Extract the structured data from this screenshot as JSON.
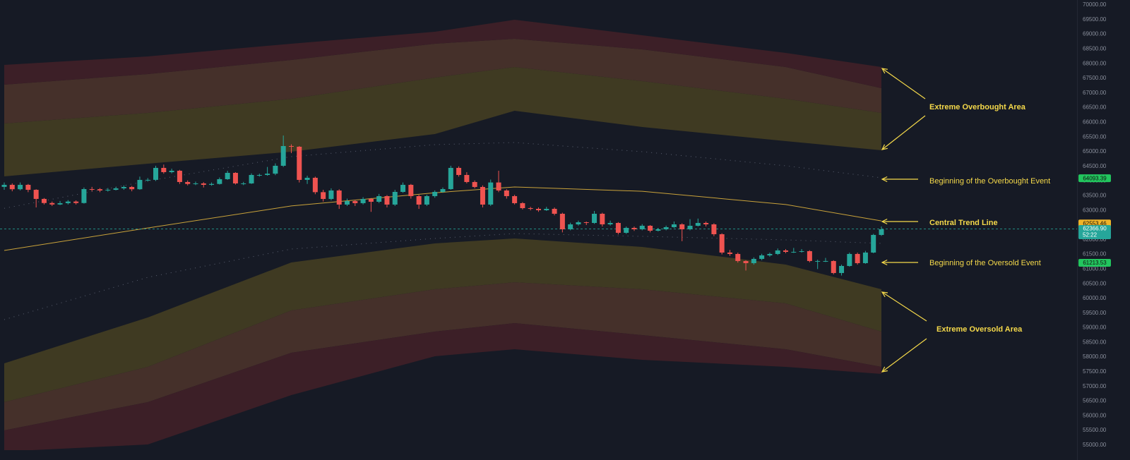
{
  "chart_data": {
    "type": "candlestick",
    "ylim": [
      54830,
      70168
    ],
    "yticks": [
      {
        "value": 55000,
        "label": "55000.00"
      },
      {
        "value": 55500,
        "label": "55500.00"
      },
      {
        "value": 56000,
        "label": "56000.00"
      },
      {
        "value": 56500,
        "label": "56500.00"
      },
      {
        "value": 57000,
        "label": "57000.00"
      },
      {
        "value": 57500,
        "label": "57500.00"
      },
      {
        "value": 58000,
        "label": "58000.00"
      },
      {
        "value": 58500,
        "label": "58500.00"
      },
      {
        "value": 59000,
        "label": "59000.00"
      },
      {
        "value": 59500,
        "label": "59500.00"
      },
      {
        "value": 60000,
        "label": "60000.00"
      },
      {
        "value": 60500,
        "label": "60500.00"
      },
      {
        "value": 61000,
        "label": "61000.00"
      },
      {
        "value": 61500,
        "label": "61500.00"
      },
      {
        "value": 62000,
        "label": "62000.00"
      },
      {
        "value": 62500,
        "label": "62500.00"
      },
      {
        "value": 63000,
        "label": "63000.00"
      },
      {
        "value": 63500,
        "label": "63500.00"
      },
      {
        "value": 64000,
        "label": "64000.00"
      },
      {
        "value": 64500,
        "label": "64500.00"
      },
      {
        "value": 65000,
        "label": "65000.00"
      },
      {
        "value": 65500,
        "label": "65500.00"
      },
      {
        "value": 66000,
        "label": "66000.00"
      },
      {
        "value": 66500,
        "label": "66500.00"
      },
      {
        "value": 67000,
        "label": "67000.00"
      },
      {
        "value": 67500,
        "label": "67500.00"
      },
      {
        "value": 68000,
        "label": "68000.00"
      },
      {
        "value": 68500,
        "label": "68500.00"
      },
      {
        "value": 69000,
        "label": "69000.00"
      },
      {
        "value": 69500,
        "label": "69500.00"
      },
      {
        "value": 70000,
        "label": "70000.00"
      }
    ],
    "up_color": "#26a69a",
    "down_color": "#ef5350",
    "ohlc": [
      [
        63800,
        63950,
        63700,
        63870
      ],
      [
        63870,
        63920,
        63650,
        63720
      ],
      [
        63720,
        63950,
        63680,
        63870
      ],
      [
        63870,
        63900,
        63620,
        63700
      ],
      [
        63700,
        63720,
        63100,
        63390
      ],
      [
        63390,
        63420,
        63200,
        63250
      ],
      [
        63250,
        63300,
        63150,
        63200
      ],
      [
        63200,
        63320,
        63180,
        63245
      ],
      [
        63245,
        63350,
        63200,
        63300
      ],
      [
        63300,
        63340,
        63200,
        63250
      ],
      [
        63250,
        63780,
        63230,
        63725
      ],
      [
        63725,
        63800,
        63650,
        63720
      ],
      [
        63720,
        63760,
        63620,
        63677
      ],
      [
        63677,
        63760,
        63640,
        63700
      ],
      [
        63700,
        63800,
        63680,
        63750
      ],
      [
        63750,
        63850,
        63700,
        63797
      ],
      [
        63797,
        63830,
        63650,
        63720
      ],
      [
        63720,
        64150,
        63700,
        64038
      ],
      [
        64038,
        64100,
        63980,
        64040
      ],
      [
        64040,
        64520,
        64000,
        64447
      ],
      [
        64447,
        64560,
        64250,
        64302
      ],
      [
        64302,
        64420,
        64260,
        64350
      ],
      [
        64350,
        64380,
        63900,
        63966
      ],
      [
        63966,
        64020,
        63850,
        63900
      ],
      [
        63900,
        63980,
        63860,
        63918
      ],
      [
        63918,
        63960,
        63780,
        63870
      ],
      [
        63870,
        63950,
        63840,
        63900
      ],
      [
        63900,
        64120,
        63880,
        64062
      ],
      [
        64062,
        64350,
        64040,
        64278
      ],
      [
        64278,
        64300,
        63880,
        63918
      ],
      [
        63918,
        63970,
        63860,
        63918
      ],
      [
        63918,
        64260,
        63900,
        64206
      ],
      [
        64206,
        64250,
        64150,
        64206
      ],
      [
        64206,
        64480,
        64180,
        64250
      ],
      [
        64250,
        64600,
        64200,
        64519
      ],
      [
        64519,
        65550,
        64480,
        65192
      ],
      [
        65192,
        65250,
        64950,
        65168
      ],
      [
        65168,
        65190,
        63950,
        64038
      ],
      [
        64038,
        64180,
        63900,
        64110
      ],
      [
        64110,
        64150,
        63550,
        63620
      ],
      [
        63620,
        63700,
        63300,
        63389
      ],
      [
        63389,
        63750,
        63340,
        63677
      ],
      [
        63677,
        63720,
        63050,
        63197
      ],
      [
        63197,
        63400,
        63150,
        63317
      ],
      [
        63317,
        63360,
        63150,
        63245
      ],
      [
        63245,
        63450,
        63200,
        63389
      ],
      [
        63389,
        63420,
        62950,
        63293
      ],
      [
        63293,
        63560,
        63250,
        63485
      ],
      [
        63485,
        63520,
        63100,
        63197
      ],
      [
        63197,
        63700,
        63150,
        63629
      ],
      [
        63629,
        63950,
        63600,
        63870
      ],
      [
        63870,
        63900,
        63400,
        63485
      ],
      [
        63485,
        63530,
        63050,
        63197
      ],
      [
        63197,
        63530,
        63150,
        63485
      ],
      [
        63485,
        63680,
        63430,
        63629
      ],
      [
        63629,
        63780,
        63600,
        63725
      ],
      [
        63725,
        64520,
        63700,
        64447
      ],
      [
        64447,
        64500,
        64150,
        64206
      ],
      [
        64206,
        64300,
        63920,
        63966
      ],
      [
        63966,
        64020,
        63750,
        63797
      ],
      [
        63797,
        63850,
        63100,
        63197
      ],
      [
        63197,
        64050,
        63150,
        63950
      ],
      [
        63950,
        64350,
        63620,
        63677
      ],
      [
        63677,
        63720,
        63400,
        63485
      ],
      [
        63485,
        63530,
        63200,
        63245
      ],
      [
        63245,
        63280,
        63030,
        63076
      ],
      [
        63076,
        63120,
        63000,
        63052
      ],
      [
        63052,
        63100,
        62950,
        63004
      ],
      [
        63004,
        63120,
        62980,
        63052
      ],
      [
        63052,
        63100,
        62830,
        62884
      ],
      [
        62884,
        62920,
        62250,
        62355
      ],
      [
        62355,
        62580,
        62320,
        62523
      ],
      [
        62523,
        62650,
        62480,
        62595
      ],
      [
        62595,
        62620,
        62500,
        62571
      ],
      [
        62571,
        62980,
        62540,
        62884
      ],
      [
        62884,
        62920,
        62450,
        62523
      ],
      [
        62523,
        62650,
        62480,
        62571
      ],
      [
        62571,
        62600,
        62180,
        62235
      ],
      [
        62235,
        62450,
        62200,
        62403
      ],
      [
        62403,
        62450,
        62300,
        62355
      ],
      [
        62355,
        62530,
        62320,
        62475
      ],
      [
        62475,
        62500,
        62250,
        62307
      ],
      [
        62307,
        62400,
        62280,
        62355
      ],
      [
        62355,
        62480,
        62320,
        62427
      ],
      [
        62427,
        62620,
        62400,
        62523
      ],
      [
        62523,
        62560,
        61950,
        62355
      ],
      [
        62355,
        62700,
        62320,
        62475
      ],
      [
        62475,
        62720,
        62450,
        62571
      ],
      [
        62571,
        62620,
        62450,
        62523
      ],
      [
        62523,
        62560,
        62120,
        62187
      ],
      [
        62187,
        62220,
        61500,
        61562
      ],
      [
        61562,
        61650,
        61450,
        61514
      ],
      [
        61514,
        61560,
        61220,
        61274
      ],
      [
        61274,
        61300,
        60950,
        61201
      ],
      [
        61201,
        61400,
        61150,
        61346
      ],
      [
        61346,
        61520,
        61300,
        61466
      ],
      [
        61466,
        61560,
        61420,
        61514
      ],
      [
        61514,
        61700,
        61480,
        61634
      ],
      [
        61634,
        61680,
        61540,
        61586
      ],
      [
        61586,
        61720,
        61550,
        61586
      ],
      [
        61586,
        61680,
        61560,
        61610
      ],
      [
        61610,
        61640,
        61230,
        61274
      ],
      [
        61274,
        61320,
        61000,
        61274
      ],
      [
        61274,
        61380,
        61240,
        61274
      ],
      [
        61274,
        61300,
        60820,
        60865
      ],
      [
        60865,
        61150,
        60780,
        61105
      ],
      [
        61105,
        61560,
        61080,
        61514
      ],
      [
        61514,
        61560,
        61150,
        61201
      ],
      [
        61201,
        61620,
        61180,
        61562
      ],
      [
        61562,
        62200,
        61540,
        62163
      ],
      [
        62163,
        62450,
        62130,
        62355
      ]
    ],
    "x": [
      0,
      18,
      36,
      54,
      64,
      80,
      98,
      110
    ],
    "upper_band": [
      {
        "values": [
          64158,
          64591,
          65000,
          65600,
          66394,
          65841,
          65360,
          65048
        ]
      },
      {
        "values": [
          65961,
          66322,
          66803,
          67524,
          67884,
          67404,
          66803,
          66322
        ],
        "color": "#3f3a22"
      },
      {
        "values": [
          67284,
          67644,
          68125,
          68678,
          68846,
          68485,
          67884,
          67163
        ],
        "color": "#45302a"
      },
      {
        "values": [
          67956,
          68245,
          68678,
          69086,
          69495,
          68966,
          68365,
          67884
        ],
        "color": "#3c1f27"
      }
    ],
    "lower_band": [
      {
        "values": [
          57787,
          59350,
          61225,
          61875,
          62043,
          61754,
          61153,
          60310
        ]
      },
      {
        "values": [
          56465,
          57667,
          59591,
          60310,
          60550,
          60310,
          59830,
          58868
        ],
        "color": "#3f3a22"
      },
      {
        "values": [
          55503,
          56465,
          58148,
          58869,
          59158,
          58749,
          58268,
          57667
        ],
        "color": "#45302a"
      },
      {
        "values": [
          54782,
          55022,
          56706,
          58028,
          58268,
          57908,
          57667,
          57427
        ],
        "color": "#3c1f27"
      }
    ],
    "trend_line": {
      "color": "#c9a23a",
      "values": [
        61634,
        62400,
        63150,
        63600,
        63797,
        63650,
        63200,
        62640
      ]
    },
    "dotted_lines": [
      {
        "color": "#5b6172",
        "values": [
          63070,
          64000,
          64831,
          65240,
          65312,
          65000,
          64519,
          64110
        ]
      },
      {
        "color": "#5b6172",
        "values": [
          59278,
          60718,
          61682,
          62043,
          62210,
          62115,
          61994,
          61875
        ]
      }
    ],
    "price_tags": [
      {
        "value": 64093.39,
        "label": "64093.39",
        "color": "#22c55e"
      },
      {
        "value": 62553.46,
        "label": "62553.46",
        "color": "#f0b429"
      },
      {
        "value": 61213.53,
        "label": "61213.53",
        "color": "#22c55e"
      }
    ],
    "current_price": {
      "value": 62366.9,
      "label": "62366.90",
      "countdown": "52:22",
      "color": "#26a69a"
    },
    "annotation_color": "#f5d94a",
    "annotations": [
      {
        "label": "Extreme Overbought Area",
        "bold": true
      },
      {
        "label": "Beginning of the Overbought Event",
        "bold": false
      },
      {
        "label": "Central Trend Line",
        "bold": true
      },
      {
        "label": "Beginning of the Oversold Event",
        "bold": false
      },
      {
        "label": "Extreme Oversold Area",
        "bold": true
      }
    ]
  }
}
